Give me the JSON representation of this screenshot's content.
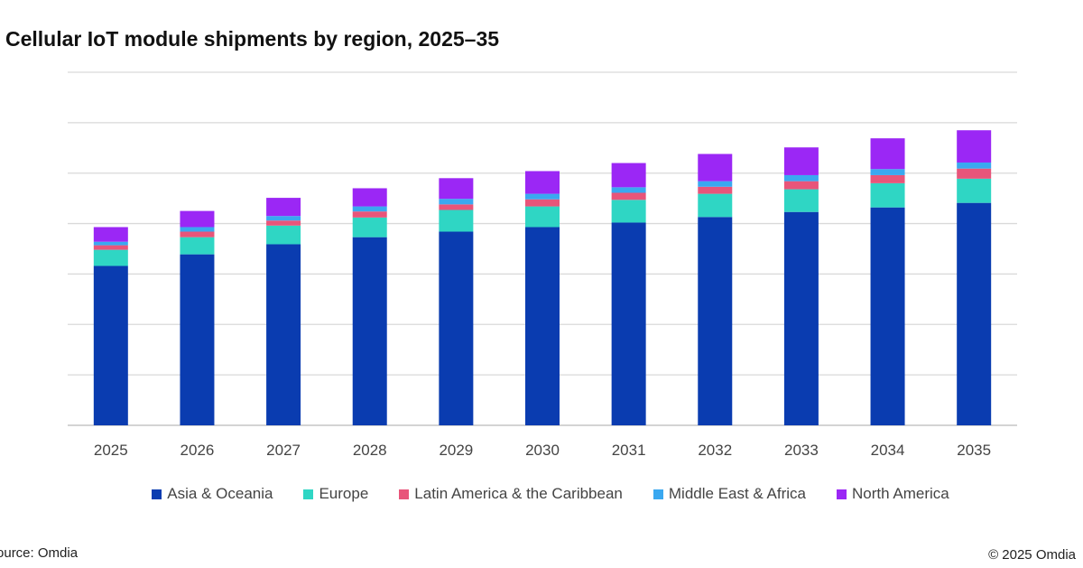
{
  "chart_data": {
    "type": "bar",
    "stacked": true,
    "title": "Cellular IoT module shipments by region, 2025–35",
    "xlabel": "",
    "ylabel": "",
    "y_tick_labels_shown": false,
    "ylim": [
      0,
      7
    ],
    "grid": true,
    "legend_position": "bottom",
    "categories": [
      "2025",
      "2026",
      "2027",
      "2028",
      "2029",
      "2030",
      "2031",
      "2032",
      "2033",
      "2034",
      "2035"
    ],
    "series": [
      {
        "name": "Asia & Oceania",
        "color": "#0a3cb0",
        "values": [
          3.16,
          3.39,
          3.59,
          3.73,
          3.84,
          3.93,
          4.02,
          4.13,
          4.23,
          4.32,
          4.41
        ]
      },
      {
        "name": "Europe",
        "color": "#2fd6c4",
        "values": [
          0.32,
          0.34,
          0.37,
          0.39,
          0.43,
          0.41,
          0.45,
          0.46,
          0.45,
          0.48,
          0.48
        ]
      },
      {
        "name": "Latin America & the Caribbean",
        "color": "#e8557a",
        "values": [
          0.09,
          0.11,
          0.1,
          0.12,
          0.11,
          0.14,
          0.14,
          0.14,
          0.16,
          0.16,
          0.2
        ]
      },
      {
        "name": "Middle East & Africa",
        "color": "#3aa8f0",
        "values": [
          0.07,
          0.09,
          0.09,
          0.1,
          0.11,
          0.11,
          0.11,
          0.11,
          0.12,
          0.12,
          0.12
        ]
      },
      {
        "name": "North America",
        "color": "#9b27f5",
        "values": [
          0.29,
          0.32,
          0.36,
          0.36,
          0.41,
          0.45,
          0.48,
          0.54,
          0.55,
          0.61,
          0.64
        ]
      }
    ]
  },
  "footer": {
    "source": "Source: Omdia",
    "copyright": "© 2025 Omdia"
  }
}
